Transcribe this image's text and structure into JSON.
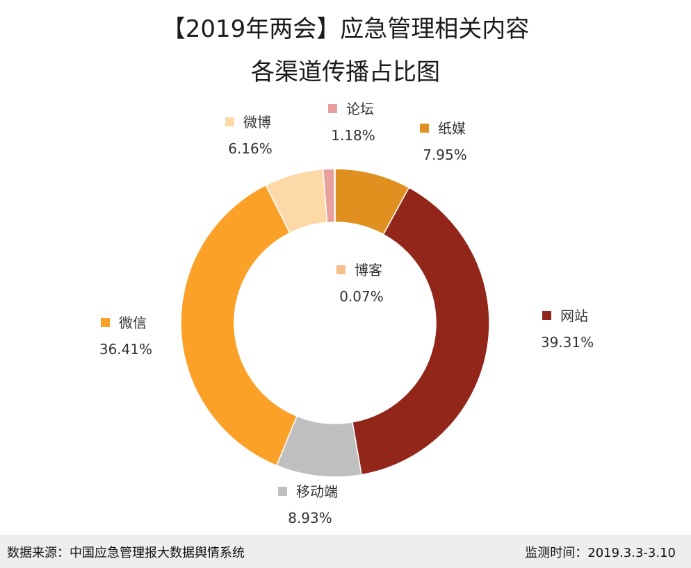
{
  "title": {
    "line1": "【2019年两会】应急管理相关内容",
    "line2": "各渠道传播占比图"
  },
  "chart_data": {
    "type": "pie",
    "donut": true,
    "start_angle_deg": 0,
    "direction": "clockwise",
    "slices": [
      {
        "name": "纸媒",
        "value": 7.95,
        "label": "7.95%",
        "color": "#E0901F"
      },
      {
        "name": "网站",
        "value": 39.31,
        "label": "39.31%",
        "color": "#92261A"
      },
      {
        "name": "移动端",
        "value": 8.93,
        "label": "8.93%",
        "color": "#BFBFBF"
      },
      {
        "name": "微信",
        "value": 36.41,
        "label": "36.41%",
        "color": "#FBA128"
      },
      {
        "name": "微博",
        "value": 6.16,
        "label": "6.16%",
        "color": "#FCD9A6"
      },
      {
        "name": "论坛",
        "value": 1.18,
        "label": "1.18%",
        "color": "#E8A09C"
      },
      {
        "name": "博客",
        "value": 0.07,
        "label": "0.07%",
        "color": "#F5C08C"
      }
    ]
  },
  "footer": {
    "source": "数据来源：中国应急管理报大数据舆情系统",
    "period": "监测时间：2019.3.3-3.10"
  }
}
